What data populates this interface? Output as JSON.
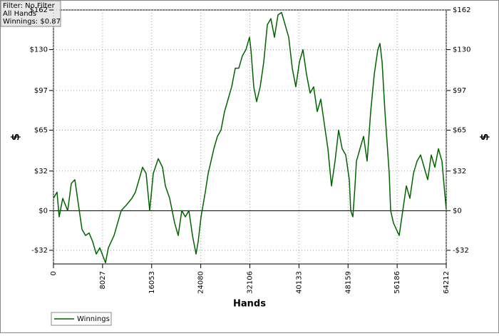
{
  "chart_data": {
    "type": "line",
    "info": [
      "Filter: No Filter",
      "All Hands",
      "Winnings: $0.87"
    ],
    "xlabel": "Hands",
    "ylabel": "$",
    "y2label": "$",
    "x": [
      0,
      583,
      932,
      1515,
      2331,
      2913,
      3496,
      4079,
      4661,
      5244,
      5827,
      6410,
      6992,
      7575,
      8507,
      8973,
      9906,
      10488,
      11071,
      12003,
      12819,
      13402,
      13984,
      14567,
      15150,
      15733,
      16315,
      17131,
      17830,
      18296,
      18995,
      19811,
      20394,
      20976,
      21559,
      22142,
      22724,
      23307,
      23657,
      24123,
      24822,
      25288,
      25754,
      26220,
      26803,
      27386,
      27969,
      28551,
      29134,
      29717,
      30299,
      30882,
      31465,
      32048,
      32281,
      32747,
      33213,
      33795,
      34378,
      34961,
      35544,
      36126,
      36709,
      37292,
      37874,
      38457,
      39040,
      39622,
      40205,
      40788,
      41371,
      41953,
      42536,
      43119,
      43701,
      44284,
      44867,
      45449,
      46032,
      46615,
      47197,
      47780,
      48363,
      48596,
      48945,
      49295,
      49528,
      50110,
      50693,
      51276,
      51859,
      52441,
      53024,
      53374,
      53723,
      54189,
      54539,
      54889,
      55122,
      55588,
      56054,
      56520,
      57103,
      57686,
      58268,
      58851,
      59434,
      60016,
      60599,
      61182,
      61764,
      62347,
      62930,
      63513,
      63862,
      64212
    ],
    "series": [
      {
        "name": "Winnings",
        "color": "#006400",
        "values": [
          10,
          15,
          -5,
          10,
          0,
          22,
          25,
          5,
          -15,
          -20,
          -18,
          -25,
          -35,
          -30,
          -42,
          -30,
          -20,
          -10,
          0,
          5,
          10,
          15,
          25,
          35,
          30,
          0,
          30,
          42,
          35,
          20,
          10,
          -10,
          -20,
          0,
          -5,
          0,
          -20,
          -35,
          -25,
          -5,
          15,
          30,
          40,
          50,
          60,
          65,
          80,
          90,
          100,
          115,
          115,
          125,
          130,
          140,
          130,
          100,
          88,
          100,
          120,
          150,
          155,
          140,
          158,
          160,
          150,
          140,
          115,
          100,
          120,
          130,
          110,
          95,
          100,
          80,
          90,
          70,
          50,
          20,
          40,
          65,
          50,
          45,
          25,
          0,
          -5,
          20,
          40,
          50,
          60,
          40,
          80,
          110,
          130,
          135,
          120,
          80,
          55,
          30,
          0,
          -10,
          -15,
          -20,
          0,
          20,
          10,
          30,
          40,
          45,
          35,
          25,
          45,
          35,
          50,
          40,
          20,
          0.87
        ]
      }
    ],
    "xlim": [
      0,
      64212
    ],
    "xticks": [
      0,
      8027,
      16053,
      24080,
      32106,
      40133,
      48159,
      56186,
      64212
    ],
    "ylim": [
      -43,
      162
    ],
    "yticks": [
      {
        "value": -32,
        "label": "-$32"
      },
      {
        "value": 0,
        "label": "$0"
      },
      {
        "value": 32,
        "label": "$32"
      },
      {
        "value": 65,
        "label": "$65"
      },
      {
        "value": 97,
        "label": "$97"
      },
      {
        "value": 130,
        "label": "$130"
      },
      {
        "value": 162,
        "label": "$162"
      }
    ],
    "grid": true
  }
}
